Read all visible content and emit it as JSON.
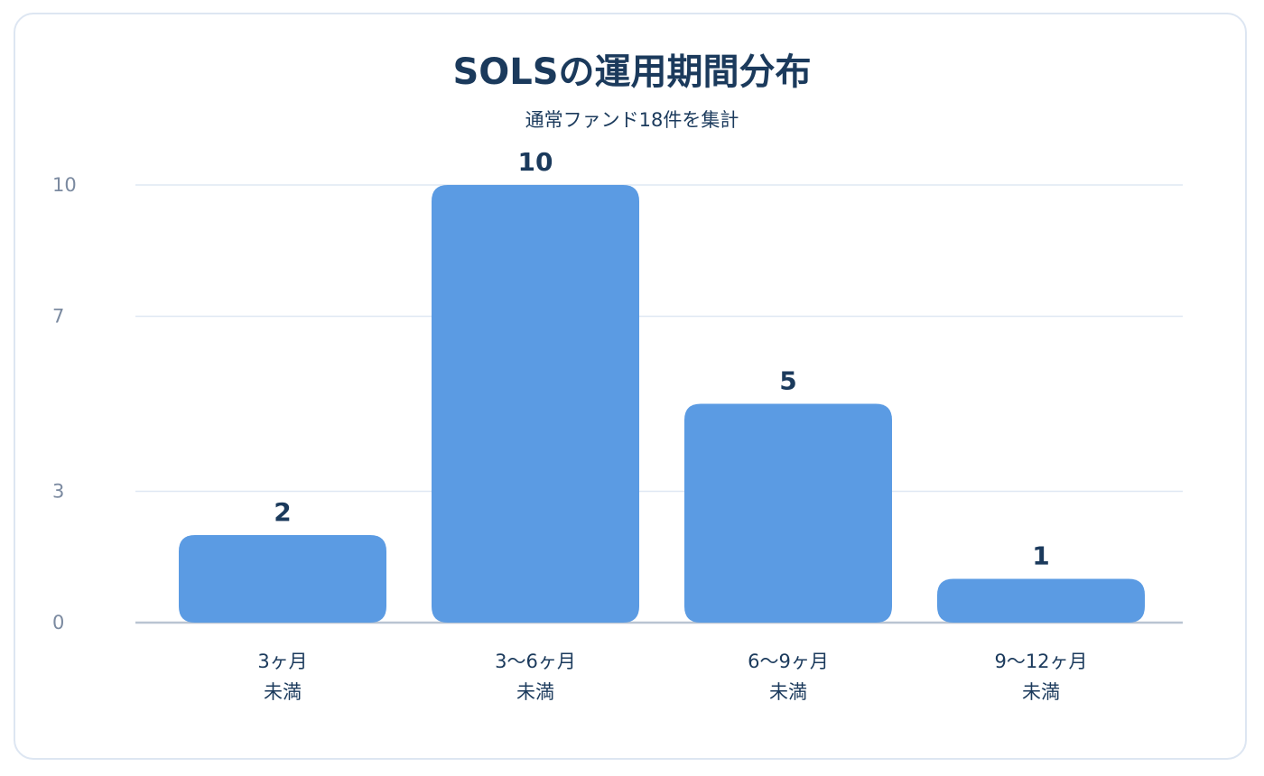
{
  "chart_data": {
    "type": "bar",
    "title": "SOLSの運用期間分布",
    "subtitle": "通常ファンド18件を集計",
    "categories": [
      [
        "3ヶ月",
        "未満"
      ],
      [
        "3〜6ヶ月",
        "未満"
      ],
      [
        "6〜9ヶ月",
        "未満"
      ],
      [
        "9〜12ヶ月",
        "未満"
      ]
    ],
    "values": [
      2,
      10,
      5,
      1
    ],
    "data_labels": [
      "2",
      "10",
      "5",
      "1"
    ],
    "yticks": [
      0,
      3,
      7,
      10
    ],
    "ylim": [
      0,
      10
    ],
    "grid": true,
    "xlabel": "",
    "ylabel": "",
    "colors": {
      "bar": "#5b9be3",
      "grid": "#dfe8f3",
      "axis": "#b9c4d2",
      "text": "#1b3a5c",
      "tick": "#7b8aa0"
    }
  }
}
